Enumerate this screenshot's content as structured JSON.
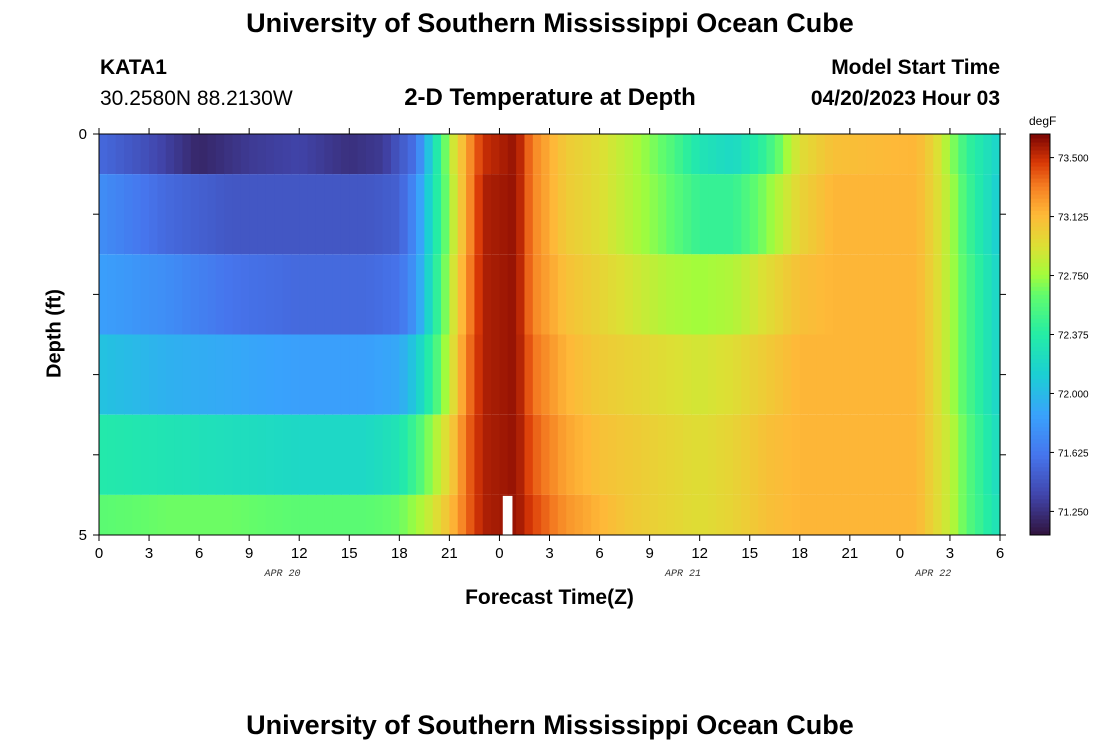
{
  "page": {
    "title": "University of Southern Mississippi Ocean Cube",
    "footer_title": "University of Southern Mississippi Ocean Cube"
  },
  "station": {
    "name": "KATA1",
    "coords": "30.2580N  88.2130W"
  },
  "model": {
    "label": "Model Start Time",
    "start": "04/20/2023 Hour 03"
  },
  "chart_data": {
    "type": "heatmap",
    "title": "2-D Temperature at Depth",
    "xlabel": "Forecast Time(Z)",
    "ylabel": "Depth (ft)",
    "colorbar_label": "degF",
    "x_tick_labels": [
      "0",
      "3",
      "6",
      "9",
      "12",
      "15",
      "18",
      "21",
      "0",
      "3",
      "6",
      "9",
      "12",
      "15",
      "18",
      "21",
      "0",
      "3",
      "6"
    ],
    "date_labels": [
      {
        "label": "APR 20",
        "hour": 11
      },
      {
        "label": "APR 21",
        "hour": 35
      },
      {
        "label": "APR 22",
        "hour": 50
      }
    ],
    "y_tick_labels": [
      "0",
      "5"
    ],
    "depth_range": [
      0,
      5
    ],
    "hours_range": [
      0,
      54
    ],
    "colorbar_ticks": [
      "73.500",
      "73.125",
      "72.750",
      "72.375",
      "72.000",
      "71.625",
      "71.250"
    ],
    "colorbar_tick_values": [
      73.5,
      73.125,
      72.75,
      72.375,
      72.0,
      71.625,
      71.25
    ],
    "vmin": 71.1,
    "vmax": 73.65,
    "layers": [
      {
        "depth_top": 0.0,
        "depth_bottom": 0.5,
        "keypoints": [
          [
            0,
            71.55
          ],
          [
            3,
            71.4
          ],
          [
            6,
            71.2
          ],
          [
            9,
            71.3
          ],
          [
            12,
            71.35
          ],
          [
            15,
            71.25
          ],
          [
            17,
            71.3
          ],
          [
            19,
            71.6
          ],
          [
            20,
            72.2
          ],
          [
            21,
            72.8
          ],
          [
            22,
            73.2
          ],
          [
            23,
            73.5
          ],
          [
            25,
            73.6
          ],
          [
            26,
            73.3
          ],
          [
            28,
            73.05
          ],
          [
            30,
            72.95
          ],
          [
            32,
            72.8
          ],
          [
            34,
            72.6
          ],
          [
            36,
            72.3
          ],
          [
            38,
            72.2
          ],
          [
            40,
            72.45
          ],
          [
            42,
            72.95
          ],
          [
            44,
            73.1
          ],
          [
            49,
            73.15
          ],
          [
            50,
            73.0
          ],
          [
            51,
            72.75
          ],
          [
            52,
            72.45
          ],
          [
            54,
            72.15
          ]
        ]
      },
      {
        "depth_top": 0.5,
        "depth_bottom": 1.5,
        "keypoints": [
          [
            0,
            71.75
          ],
          [
            4,
            71.55
          ],
          [
            8,
            71.45
          ],
          [
            12,
            71.45
          ],
          [
            16,
            71.45
          ],
          [
            18,
            71.5
          ],
          [
            19,
            71.75
          ],
          [
            20,
            72.25
          ],
          [
            21,
            72.75
          ],
          [
            22,
            73.2
          ],
          [
            23,
            73.55
          ],
          [
            25,
            73.6
          ],
          [
            26,
            73.3
          ],
          [
            28,
            73.05
          ],
          [
            30,
            72.95
          ],
          [
            32,
            72.8
          ],
          [
            34,
            72.65
          ],
          [
            36,
            72.45
          ],
          [
            38,
            72.45
          ],
          [
            40,
            72.7
          ],
          [
            42,
            73.0
          ],
          [
            44,
            73.15
          ],
          [
            49,
            73.15
          ],
          [
            50,
            73.0
          ],
          [
            51,
            72.8
          ],
          [
            52,
            72.5
          ],
          [
            54,
            72.1
          ]
        ]
      },
      {
        "depth_top": 1.5,
        "depth_bottom": 2.5,
        "keypoints": [
          [
            0,
            71.85
          ],
          [
            4,
            71.75
          ],
          [
            8,
            71.6
          ],
          [
            12,
            71.55
          ],
          [
            16,
            71.55
          ],
          [
            18,
            71.6
          ],
          [
            19,
            71.8
          ],
          [
            20,
            72.3
          ],
          [
            21,
            72.8
          ],
          [
            22,
            73.25
          ],
          [
            23,
            73.55
          ],
          [
            25,
            73.6
          ],
          [
            26,
            73.3
          ],
          [
            28,
            73.1
          ],
          [
            30,
            73.0
          ],
          [
            32,
            72.9
          ],
          [
            34,
            72.8
          ],
          [
            36,
            72.75
          ],
          [
            38,
            72.8
          ],
          [
            40,
            72.95
          ],
          [
            42,
            73.1
          ],
          [
            44,
            73.15
          ],
          [
            49,
            73.15
          ],
          [
            50,
            73.0
          ],
          [
            51,
            72.8
          ],
          [
            52,
            72.55
          ],
          [
            54,
            72.15
          ]
        ]
      },
      {
        "depth_top": 2.5,
        "depth_bottom": 3.5,
        "keypoints": [
          [
            0,
            72.05
          ],
          [
            4,
            71.95
          ],
          [
            8,
            71.9
          ],
          [
            12,
            71.85
          ],
          [
            16,
            71.85
          ],
          [
            18,
            71.9
          ],
          [
            19,
            72.1
          ],
          [
            20,
            72.45
          ],
          [
            21,
            72.85
          ],
          [
            22,
            73.3
          ],
          [
            23,
            73.55
          ],
          [
            25,
            73.6
          ],
          [
            26,
            73.35
          ],
          [
            28,
            73.15
          ],
          [
            30,
            73.05
          ],
          [
            32,
            73.0
          ],
          [
            34,
            72.95
          ],
          [
            36,
            72.9
          ],
          [
            38,
            72.95
          ],
          [
            40,
            73.05
          ],
          [
            42,
            73.15
          ],
          [
            44,
            73.15
          ],
          [
            49,
            73.15
          ],
          [
            50,
            73.0
          ],
          [
            51,
            72.8
          ],
          [
            52,
            72.55
          ],
          [
            54,
            72.15
          ]
        ]
      },
      {
        "depth_top": 3.5,
        "depth_bottom": 4.5,
        "keypoints": [
          [
            0,
            72.35
          ],
          [
            4,
            72.3
          ],
          [
            8,
            72.25
          ],
          [
            12,
            72.2
          ],
          [
            16,
            72.2
          ],
          [
            18,
            72.3
          ],
          [
            19,
            72.5
          ],
          [
            20,
            72.75
          ],
          [
            21,
            73.0
          ],
          [
            22,
            73.35
          ],
          [
            23,
            73.55
          ],
          [
            25,
            73.6
          ],
          [
            26,
            73.4
          ],
          [
            28,
            73.2
          ],
          [
            30,
            73.1
          ],
          [
            32,
            73.05
          ],
          [
            34,
            73.0
          ],
          [
            36,
            72.95
          ],
          [
            38,
            73.0
          ],
          [
            40,
            73.1
          ],
          [
            42,
            73.15
          ],
          [
            44,
            73.15
          ],
          [
            49,
            73.15
          ],
          [
            50,
            73.0
          ],
          [
            51,
            72.85
          ],
          [
            52,
            72.6
          ],
          [
            54,
            72.2
          ]
        ]
      },
      {
        "depth_top": 4.5,
        "depth_bottom": 5.0,
        "keypoints": [
          [
            0,
            72.6
          ],
          [
            4,
            72.65
          ],
          [
            8,
            72.65
          ],
          [
            12,
            72.6
          ],
          [
            16,
            72.6
          ],
          [
            18,
            72.65
          ],
          [
            19,
            72.75
          ],
          [
            20,
            72.9
          ],
          [
            21,
            73.1
          ],
          [
            22,
            73.35
          ],
          [
            23,
            73.55
          ],
          [
            25,
            73.6
          ],
          [
            26,
            73.45
          ],
          [
            28,
            73.25
          ],
          [
            30,
            73.15
          ],
          [
            32,
            73.05
          ],
          [
            34,
            73.0
          ],
          [
            36,
            72.95
          ],
          [
            38,
            73.0
          ],
          [
            40,
            73.1
          ],
          [
            42,
            73.15
          ],
          [
            44,
            73.15
          ],
          [
            49,
            73.15
          ],
          [
            50,
            73.0
          ],
          [
            51,
            72.85
          ],
          [
            52,
            72.6
          ],
          [
            54,
            72.25
          ]
        ]
      }
    ],
    "missing_data": {
      "hour_start": 24.2,
      "hour_end": 24.6,
      "depth_top": 4.5,
      "depth_bottom": 5.0
    }
  }
}
